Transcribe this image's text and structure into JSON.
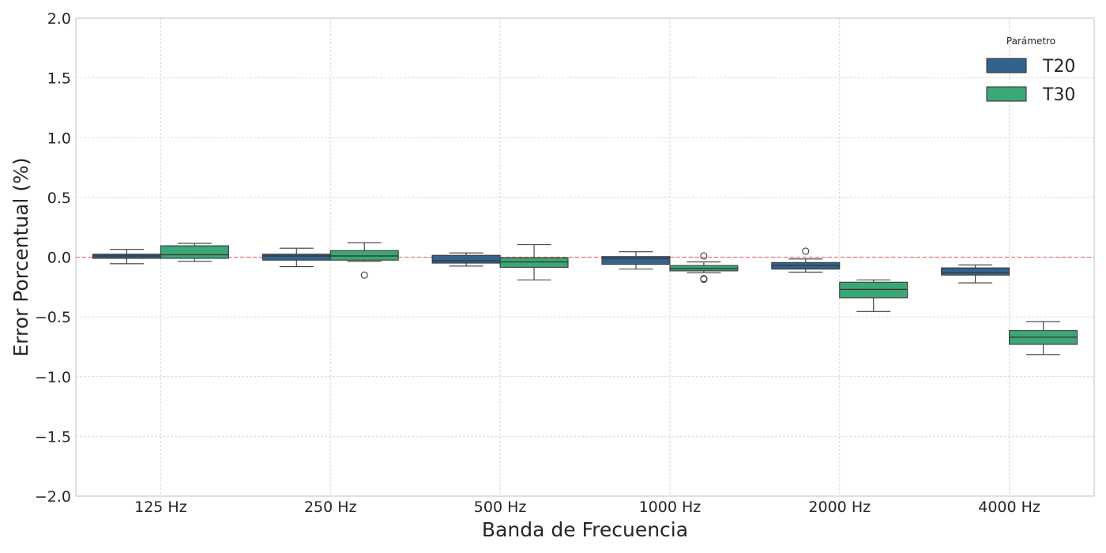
{
  "chart_data": {
    "type": "box",
    "xlabel": "Banda de Frecuencia",
    "ylabel": "Error Porcentual (%)",
    "ylim": [
      -2.0,
      2.0
    ],
    "yticks": [
      -2.0,
      -1.5,
      -1.0,
      -0.5,
      0.0,
      0.5,
      1.0,
      1.5,
      2.0
    ],
    "ytick_labels": [
      "−2.0",
      "−1.5",
      "−1.0",
      "−0.5",
      "0.0",
      "0.5",
      "1.0",
      "1.5",
      "2.0"
    ],
    "categories": [
      "125 Hz",
      "250 Hz",
      "500 Hz",
      "1000 Hz",
      "2000 Hz",
      "4000 Hz"
    ],
    "grid": true,
    "reference_line": {
      "y": 0.0,
      "color": "#ef5350",
      "style": "dashed"
    },
    "legend": {
      "title": "Parámetro",
      "placement": "top-right"
    },
    "series": [
      {
        "name": "T20",
        "color": "#33638d",
        "boxes": [
          {
            "whisker_low": -0.055,
            "q1": -0.01,
            "median": 0.01,
            "q3": 0.025,
            "whisker_high": 0.065,
            "outliers": []
          },
          {
            "whisker_low": -0.08,
            "q1": -0.025,
            "median": 0.01,
            "q3": 0.025,
            "whisker_high": 0.075,
            "outliers": []
          },
          {
            "whisker_low": -0.075,
            "q1": -0.05,
            "median": -0.03,
            "q3": 0.015,
            "whisker_high": 0.035,
            "outliers": []
          },
          {
            "whisker_low": -0.1,
            "q1": -0.06,
            "median": -0.01,
            "q3": 0.005,
            "whisker_high": 0.045,
            "outliers": []
          },
          {
            "whisker_low": -0.125,
            "q1": -0.1,
            "median": -0.07,
            "q3": -0.045,
            "whisker_high": -0.015,
            "outliers": [
              0.05
            ]
          },
          {
            "whisker_low": -0.215,
            "q1": -0.15,
            "median": -0.13,
            "q3": -0.09,
            "whisker_high": -0.065,
            "outliers": []
          }
        ]
      },
      {
        "name": "T30",
        "color": "#3ba776",
        "boxes": [
          {
            "whisker_low": -0.035,
            "q1": -0.01,
            "median": 0.02,
            "q3": 0.095,
            "whisker_high": 0.115,
            "outliers": []
          },
          {
            "whisker_low": -0.035,
            "q1": -0.025,
            "median": 0.01,
            "q3": 0.055,
            "whisker_high": 0.12,
            "outliers": [
              -0.15
            ]
          },
          {
            "whisker_low": -0.19,
            "q1": -0.085,
            "median": -0.04,
            "q3": -0.005,
            "whisker_high": 0.105,
            "outliers": []
          },
          {
            "whisker_low": -0.13,
            "q1": -0.115,
            "median": -0.095,
            "q3": -0.07,
            "whisker_high": -0.04,
            "outliers": [
              0.01,
              -0.18,
              -0.185
            ]
          },
          {
            "whisker_low": -0.455,
            "q1": -0.34,
            "median": -0.27,
            "q3": -0.21,
            "whisker_high": -0.19,
            "outliers": []
          },
          {
            "whisker_low": -0.815,
            "q1": -0.73,
            "median": -0.67,
            "q3": -0.615,
            "whisker_high": -0.54,
            "outliers": []
          }
        ]
      }
    ]
  }
}
